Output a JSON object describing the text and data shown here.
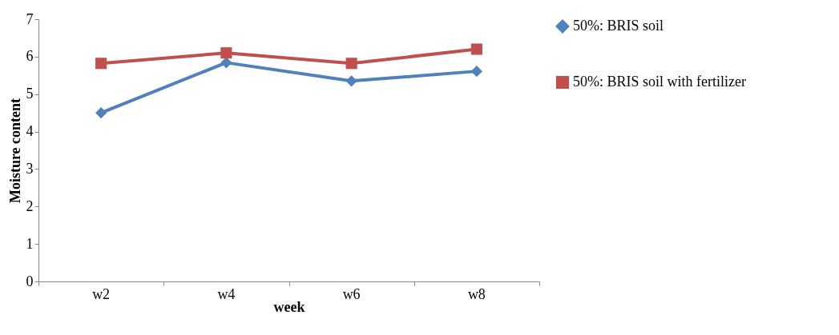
{
  "chart_data": {
    "type": "line",
    "xlabel": "week",
    "ylabel": "Moisture content",
    "categories": [
      "w2",
      "w4",
      "w6",
      "w8"
    ],
    "series": [
      {
        "name": "50%: BRIS soil",
        "color": "#4f81bd",
        "marker": "diamond",
        "values": [
          4.5,
          5.84,
          5.35,
          5.61
        ]
      },
      {
        "name": "50%: BRIS soil with fertilizer",
        "color": "#c0504d",
        "marker": "square",
        "values": [
          5.82,
          6.1,
          5.82,
          6.2
        ]
      }
    ],
    "ylim": [
      0,
      7
    ],
    "yticks": [
      0,
      1,
      2,
      3,
      4,
      5,
      6,
      7
    ],
    "grid": false,
    "legend": "right",
    "line_style": "solid"
  }
}
